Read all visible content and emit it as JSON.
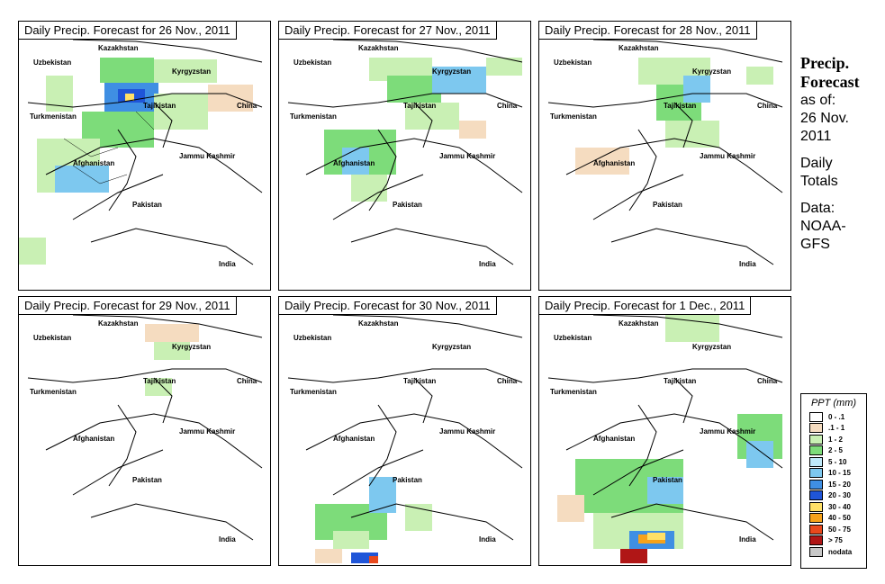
{
  "panels": [
    {
      "title": "Daily Precip. Forecast for  26 Nov., 2011"
    },
    {
      "title": "Daily Precip. Forecast for  27 Nov., 2011"
    },
    {
      "title": "Daily Precip. Forecast for  28 Nov., 2011"
    },
    {
      "title": "Daily Precip. Forecast for  29 Nov., 2011"
    },
    {
      "title": "Daily Precip. Forecast for  30 Nov., 2011"
    },
    {
      "title": "Daily Precip. Forecast for  1 Dec., 2011"
    }
  ],
  "map_labels": {
    "kazakhstan": "Kazakhstan",
    "uzbekistan": "Uzbekistan",
    "kyrgyzstan": "Kyrgyzstan",
    "turkmenistan": "Turkmenistan",
    "tajikistan": "Tajikistan",
    "china": "China",
    "jammu_kashmir": "Jammu Kashmir",
    "afghanistan": "Afghanistan",
    "pakistan": "Pakistan",
    "india": "India"
  },
  "side": {
    "heading1": "Precip.",
    "heading2": "Forecast",
    "line1": "as of:",
    "line2": "26 Nov.",
    "line3": "2011",
    "line4": "Daily",
    "line5": "Totals",
    "line6": "Data:",
    "line7": "NOAA-",
    "line8": "GFS"
  },
  "legend": {
    "title": "PPT (mm)",
    "items": [
      {
        "label": "0 - .1",
        "color": "#ffffff"
      },
      {
        "label": ".1 - 1",
        "color": "#f5dcc0"
      },
      {
        "label": "1 - 2",
        "color": "#c9f0b4"
      },
      {
        "label": "2 - 5",
        "color": "#7ddc7a"
      },
      {
        "label": "5 - 10",
        "color": "#bfe9f9"
      },
      {
        "label": "10 - 15",
        "color": "#7dc8ef"
      },
      {
        "label": "15 - 20",
        "color": "#3f8fe3"
      },
      {
        "label": "20 - 30",
        "color": "#1f55d8"
      },
      {
        "label": "30 - 40",
        "color": "#ffe066"
      },
      {
        "label": "40 - 50",
        "color": "#f7a21a"
      },
      {
        "label": "50 - 75",
        "color": "#e8491d"
      },
      {
        "label": "> 75",
        "color": "#b01616"
      },
      {
        "label": "nodata",
        "color": "#c8c8c8"
      }
    ]
  }
}
